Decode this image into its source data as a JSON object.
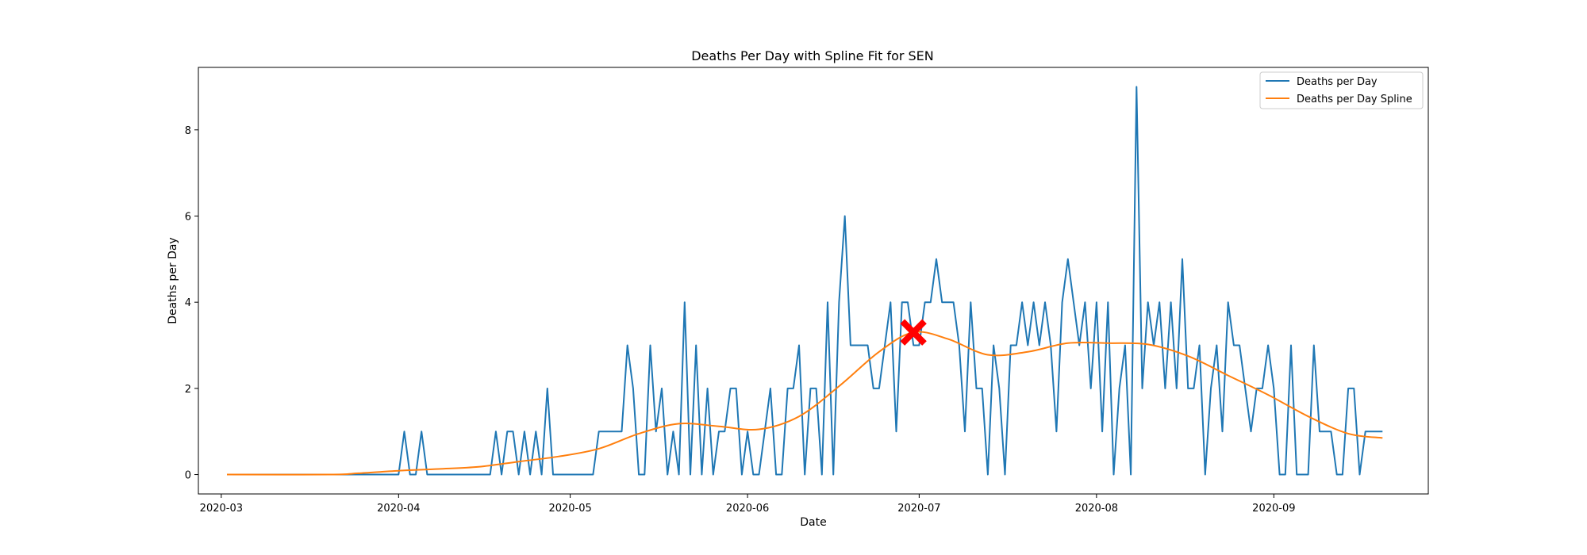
{
  "chart_data": {
    "type": "line",
    "title": "Deaths Per Day with Spline Fit for SEN",
    "xlabel": "Date",
    "ylabel": "Deaths per Day",
    "x_range": [
      "2020-02-26",
      "2020-09-28"
    ],
    "ylim": [
      -0.45,
      9.45
    ],
    "x_ticks": [
      "2020-03",
      "2020-04",
      "2020-05",
      "2020-06",
      "2020-07",
      "2020-08",
      "2020-09"
    ],
    "y_ticks": [
      0,
      2,
      4,
      6,
      8
    ],
    "grid": false,
    "legend_position": "top-right",
    "series": [
      {
        "name": "Deaths per Day",
        "color": "#1f77b4",
        "start_date": "2020-03-02",
        "values": [
          0,
          0,
          0,
          0,
          0,
          0,
          0,
          0,
          0,
          0,
          0,
          0,
          0,
          0,
          0,
          0,
          0,
          0,
          0,
          0,
          0,
          0,
          0,
          0,
          0,
          0,
          0,
          0,
          0,
          0,
          0,
          1,
          0,
          0,
          1,
          0,
          0,
          0,
          0,
          0,
          0,
          0,
          0,
          0,
          0,
          0,
          0,
          1,
          0,
          1,
          1,
          0,
          1,
          0,
          1,
          0,
          2,
          0,
          0,
          0,
          0,
          0,
          0,
          0,
          0,
          1,
          1,
          1,
          1,
          1,
          3,
          2,
          0,
          0,
          3,
          1,
          2,
          0,
          1,
          0,
          4,
          0,
          3,
          0,
          2,
          0,
          1,
          1,
          2,
          2,
          0,
          1,
          0,
          0,
          1,
          2,
          0,
          0,
          2,
          2,
          3,
          0,
          2,
          2,
          0,
          4,
          0,
          4,
          6,
          3,
          3,
          3,
          3,
          2,
          2,
          3,
          4,
          1,
          4,
          4,
          3,
          3,
          4,
          4,
          5,
          4,
          4,
          4,
          3,
          1,
          4,
          2,
          2,
          0,
          3,
          2,
          0,
          3,
          3,
          4,
          3,
          4,
          3,
          4,
          3,
          1,
          4,
          5,
          4,
          3,
          4,
          2,
          4,
          1,
          4,
          0,
          2,
          3,
          0,
          9,
          2,
          4,
          3,
          4,
          2,
          4,
          2,
          5,
          2,
          2,
          3,
          0,
          2,
          3,
          1,
          4,
          3,
          3,
          2,
          1,
          2,
          2,
          3,
          2,
          0,
          0,
          3,
          0,
          0,
          0,
          3,
          1,
          1,
          1,
          0,
          0,
          2,
          2,
          0,
          1,
          1,
          1,
          1
        ]
      },
      {
        "name": "Deaths per Day Spline",
        "color": "#ff7f0e",
        "knots": [
          [
            "2020-03-02",
            0
          ],
          [
            "2020-03-20",
            0
          ],
          [
            "2020-03-25",
            0.03
          ],
          [
            "2020-04-01",
            0.09
          ],
          [
            "2020-04-08",
            0.13
          ],
          [
            "2020-04-15",
            0.18
          ],
          [
            "2020-04-22",
            0.3
          ],
          [
            "2020-04-29",
            0.42
          ],
          [
            "2020-05-06",
            0.6
          ],
          [
            "2020-05-13",
            0.95
          ],
          [
            "2020-05-20",
            1.18
          ],
          [
            "2020-05-27",
            1.12
          ],
          [
            "2020-06-03",
            1.05
          ],
          [
            "2020-06-10",
            1.35
          ],
          [
            "2020-06-17",
            2.05
          ],
          [
            "2020-06-24",
            2.85
          ],
          [
            "2020-06-30",
            3.3
          ],
          [
            "2020-07-06",
            3.15
          ],
          [
            "2020-07-13",
            2.78
          ],
          [
            "2020-07-20",
            2.85
          ],
          [
            "2020-07-27",
            3.05
          ],
          [
            "2020-08-03",
            3.05
          ],
          [
            "2020-08-10",
            3.02
          ],
          [
            "2020-08-17",
            2.75
          ],
          [
            "2020-08-24",
            2.3
          ],
          [
            "2020-08-31",
            1.85
          ],
          [
            "2020-09-07",
            1.35
          ],
          [
            "2020-09-14",
            0.95
          ],
          [
            "2020-09-20",
            0.85
          ]
        ]
      }
    ],
    "marker": {
      "date": "2020-06-30",
      "value": 3.3,
      "color": "#ff0000",
      "shape": "x"
    }
  }
}
